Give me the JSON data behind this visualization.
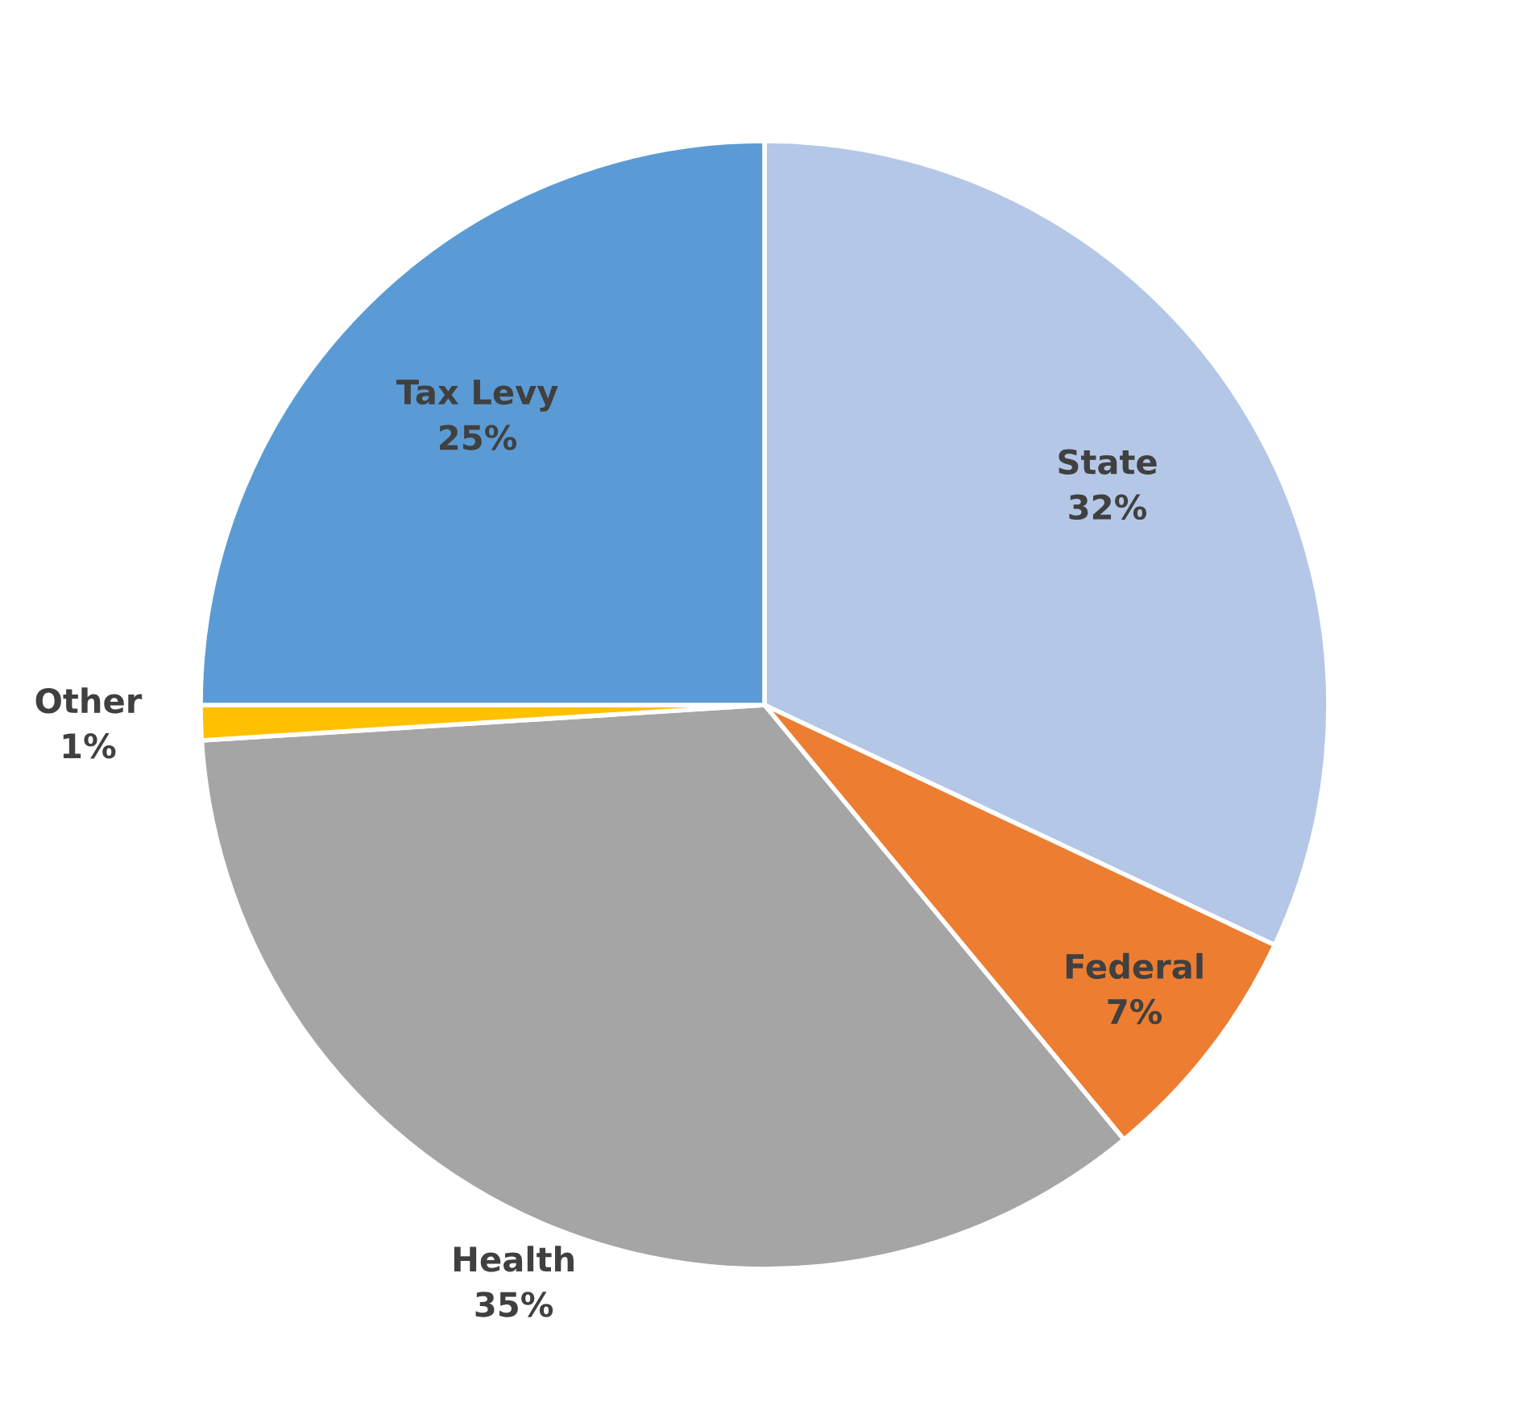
{
  "chart_data": {
    "type": "pie",
    "categories": [
      "State",
      "Federal",
      "Health",
      "Other",
      "Tax Levy"
    ],
    "values": [
      32,
      7,
      35,
      1,
      25
    ],
    "colors": [
      "#b4c7e7",
      "#ed7d31",
      "#a5a5a5",
      "#ffc000",
      "#5b9bd5"
    ],
    "value_labels": [
      "32%",
      "7%",
      "35%",
      "1%",
      "25%"
    ],
    "legend": false
  }
}
